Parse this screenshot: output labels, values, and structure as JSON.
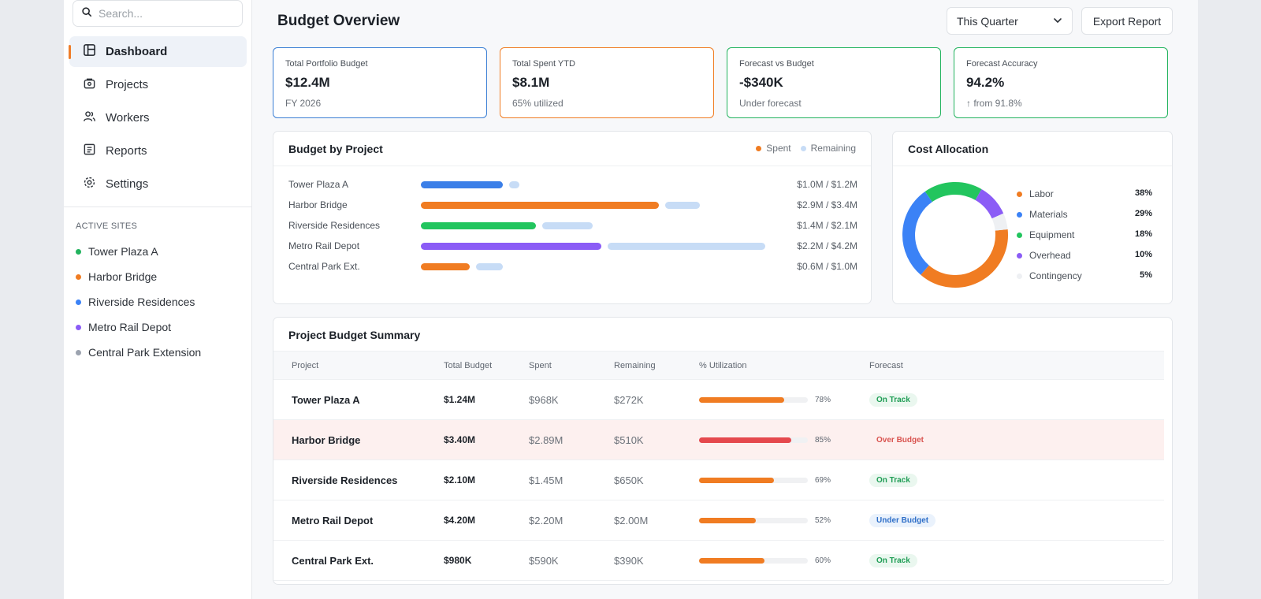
{
  "search": {
    "placeholder": "Search..."
  },
  "nav": {
    "items": [
      {
        "label": "Dashboard",
        "icon": "dashboard-icon",
        "active": true
      },
      {
        "label": "Projects",
        "icon": "projects-icon",
        "active": false
      },
      {
        "label": "Workers",
        "icon": "workers-icon",
        "active": false
      },
      {
        "label": "Reports",
        "icon": "reports-icon",
        "active": false
      },
      {
        "label": "Settings",
        "icon": "settings-icon",
        "active": false
      }
    ]
  },
  "active_sites": {
    "title": "ACTIVE SITES",
    "items": [
      {
        "label": "Tower Plaza A",
        "color": "#22b35e"
      },
      {
        "label": "Harbor Bridge",
        "color": "#f07c22"
      },
      {
        "label": "Riverside Residences",
        "color": "#3b82f6"
      },
      {
        "label": "Metro Rail Depot",
        "color": "#8b5cf6"
      },
      {
        "label": "Central Park Extension",
        "color": "#9ca3af"
      }
    ]
  },
  "header": {
    "title": "Budget Overview",
    "period": "This Quarter",
    "export_label": "Export Report"
  },
  "kpis": [
    {
      "label": "Total Portfolio Budget",
      "value": "$12.4M",
      "sub": "FY 2026",
      "color": "#3b7fd4"
    },
    {
      "label": "Total Spent YTD",
      "value": "$8.1M",
      "sub": "65% utilized",
      "color": "#f07c22"
    },
    {
      "label": "Forecast vs Budget",
      "value": "-$340K",
      "sub": "Under forecast",
      "color": "#22b35e"
    },
    {
      "label": "Forecast Accuracy",
      "value": "94.2%",
      "sub": "↑ from 91.8%",
      "color": "#22b35e"
    }
  ],
  "budget_by_project": {
    "title": "Budget by Project",
    "legend": {
      "spent": "Spent",
      "remaining": "Remaining"
    },
    "rows": [
      {
        "name": "Tower Plaza A",
        "spent": 1.0,
        "remaining": 0.2,
        "value_label": "$1.0M / $1.2M",
        "color": "#3b7fe8"
      },
      {
        "name": "Harbor Bridge",
        "spent": 2.9,
        "remaining": 0.5,
        "value_label": "$2.9M / $3.4M",
        "color": "#f07c22"
      },
      {
        "name": "Riverside Residences",
        "spent": 1.4,
        "remaining": 0.7,
        "value_label": "$1.4M / $2.1M",
        "color": "#22c55e"
      },
      {
        "name": "Metro Rail Depot",
        "spent": 2.2,
        "remaining": 2.0,
        "value_label": "$2.2M / $4.2M",
        "color": "#8b5cf6"
      },
      {
        "name": "Central Park Ext.",
        "spent": 0.6,
        "remaining": 0.4,
        "value_label": "$0.6M / $1.0M",
        "color": "#f07c22"
      }
    ],
    "remaining_color": "#c7dcf6"
  },
  "cost_allocation": {
    "title": "Cost Allocation",
    "items": [
      {
        "label": "Labor",
        "percent": 38,
        "percent_label": "38%",
        "color": "#f07c22"
      },
      {
        "label": "Materials",
        "percent": 29,
        "percent_label": "29%",
        "color": "#3b82f6"
      },
      {
        "label": "Equipment",
        "percent": 18,
        "percent_label": "18%",
        "color": "#22c55e"
      },
      {
        "label": "Overhead",
        "percent": 10,
        "percent_label": "10%",
        "color": "#8b5cf6"
      },
      {
        "label": "Contingency",
        "percent": 5,
        "percent_label": "5%",
        "color": "#eef0f3"
      }
    ]
  },
  "summary": {
    "title": "Project Budget Summary",
    "columns": [
      "Project",
      "Total Budget",
      "Spent",
      "Remaining",
      "% Utilization",
      "Forecast"
    ],
    "rows": [
      {
        "project": "Tower Plaza A",
        "total": "$1.24M",
        "spent": "$968K",
        "remaining": "$272K",
        "utilization": 78,
        "utilization_label": "78%",
        "forecast": "On Track",
        "status": "on-track"
      },
      {
        "project": "Harbor Bridge",
        "total": "$3.40M",
        "spent": "$2.89M",
        "remaining": "$510K",
        "utilization": 85,
        "utilization_label": "85%",
        "forecast": "Over Budget",
        "status": "over-budget"
      },
      {
        "project": "Riverside Residences",
        "total": "$2.10M",
        "spent": "$1.45M",
        "remaining": "$650K",
        "utilization": 69,
        "utilization_label": "69%",
        "forecast": "On Track",
        "status": "on-track"
      },
      {
        "project": "Metro Rail Depot",
        "total": "$4.20M",
        "spent": "$2.20M",
        "remaining": "$2.00M",
        "utilization": 52,
        "utilization_label": "52%",
        "forecast": "Under Budget",
        "status": "under-budget"
      },
      {
        "project": "Central Park Ext.",
        "total": "$980K",
        "spent": "$590K",
        "remaining": "$390K",
        "utilization": 60,
        "utilization_label": "60%",
        "forecast": "On Track",
        "status": "on-track"
      }
    ]
  },
  "status_colors": {
    "on-track": {
      "text": "#1f9d55",
      "bg": "#eaf7ef"
    },
    "over-budget": {
      "text": "#d9534f",
      "bg": "transparent"
    },
    "under-budget": {
      "text": "#2f6fc8",
      "bg": "#eaf2fc"
    }
  },
  "utilization_colors": {
    "normal": "#f07c22",
    "over": "#e5484d"
  }
}
